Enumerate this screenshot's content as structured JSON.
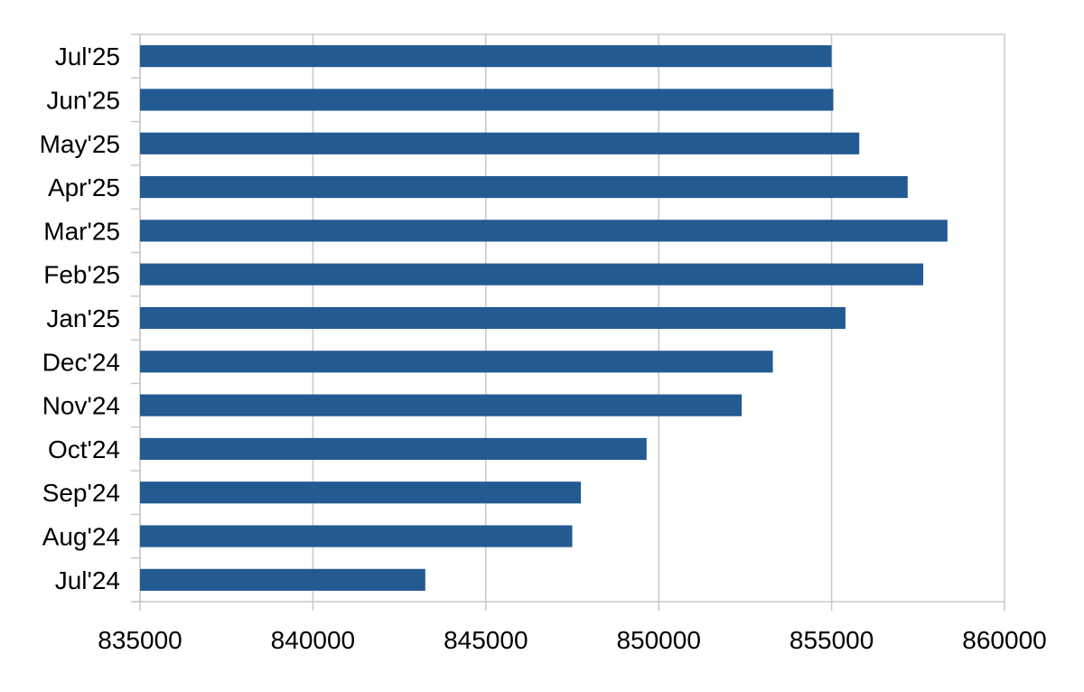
{
  "chart_data": {
    "type": "bar",
    "orientation": "horizontal",
    "title": "",
    "xlabel": "",
    "ylabel": "",
    "categories": [
      "Jul'24",
      "Aug'24",
      "Sep'24",
      "Oct'24",
      "Nov'24",
      "Dec'24",
      "Jan'25",
      "Feb'25",
      "Mar'25",
      "Apr'25",
      "May'25",
      "Jun'25",
      "Jul'25"
    ],
    "values": [
      843250,
      847500,
      847750,
      849650,
      852400,
      853300,
      855400,
      857650,
      858350,
      857200,
      855800,
      855050,
      855000
    ],
    "xlim": [
      835000,
      860000
    ],
    "xticks": [
      835000,
      840000,
      845000,
      850000,
      855000,
      860000
    ],
    "xtick_labels": [
      "835000",
      "840000",
      "845000",
      "850000",
      "855000",
      "860000"
    ],
    "grid": "vertical",
    "legend": "none",
    "bar_color": "#245a92"
  }
}
